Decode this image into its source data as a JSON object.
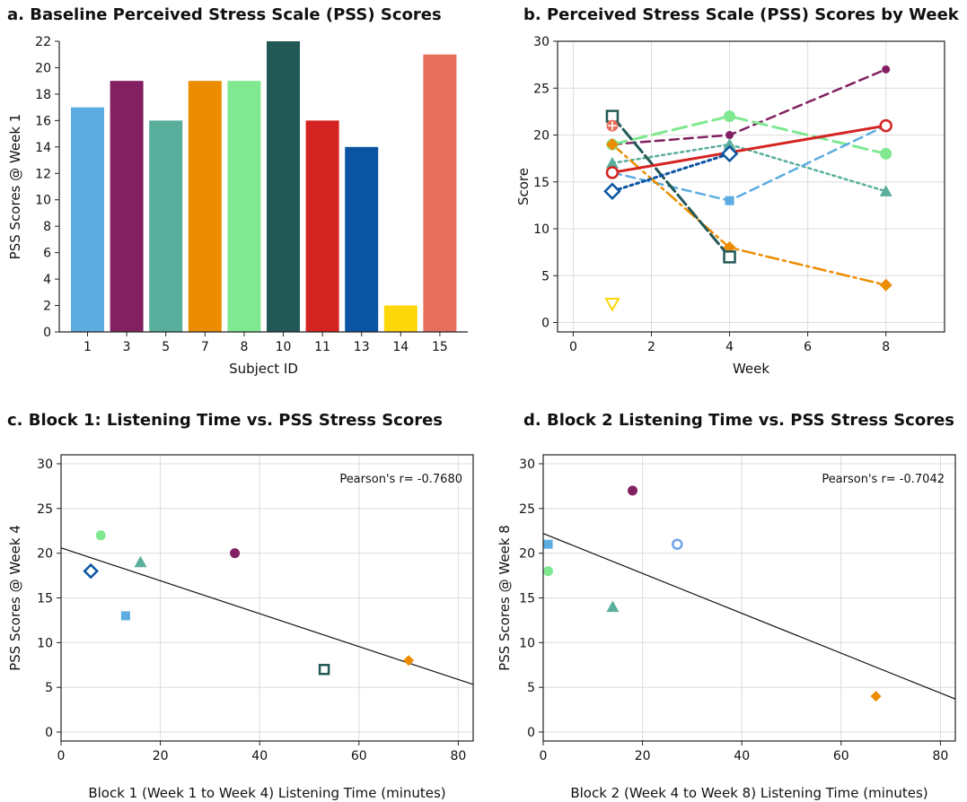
{
  "chart_data": [
    {
      "id": "a",
      "type": "bar",
      "title": "a. Baseline Perceived Stress Scale (PSS) Scores",
      "xlabel": "Subject ID",
      "ylabel": "PSS Scores @ Week 1",
      "ylim": [
        0,
        22
      ],
      "yticks": [
        0,
        2,
        4,
        6,
        8,
        10,
        12,
        14,
        16,
        18,
        20,
        22
      ],
      "grid": false,
      "categories": [
        "1",
        "3",
        "5",
        "7",
        "8",
        "10",
        "11",
        "13",
        "14",
        "15"
      ],
      "values": [
        17,
        19,
        16,
        19,
        19,
        22,
        16,
        14,
        2,
        21
      ],
      "colors": [
        "#5DADE2",
        "#822062",
        "#5AAE9C",
        "#EC8C00",
        "#7FE891",
        "#225956",
        "#D42421",
        "#0A55A3",
        "#FDD70A",
        "#E66F5C"
      ]
    },
    {
      "id": "b",
      "type": "line",
      "title": "b. Perceived Stress Scale (PSS) Scores by Week",
      "xlabel": "Week",
      "ylabel": "Score",
      "xlim": [
        -0.4,
        9.5
      ],
      "ylim": [
        -1,
        30
      ],
      "xticks": [
        0,
        2,
        4,
        6,
        8
      ],
      "yticks": [
        0,
        5,
        10,
        15,
        20,
        25,
        30
      ],
      "grid": true,
      "series": [
        {
          "color": "#822062",
          "dash": "10,6",
          "width": 2.5,
          "marker": "circle",
          "msize": 4,
          "fill": "#822062",
          "points": [
            [
              1,
              19
            ],
            [
              4,
              20
            ],
            [
              8,
              27
            ]
          ]
        },
        {
          "color": "#7FE891",
          "dash": "16,7",
          "width": 3,
          "marker": "circle",
          "msize": 6,
          "fill": "#7FE891",
          "points": [
            [
              1,
              19
            ],
            [
              4,
              22
            ],
            [
              8,
              18
            ]
          ]
        },
        {
          "color": "#5AAE9C",
          "dash": "3,4",
          "width": 2.5,
          "marker": "triangle",
          "msize": 7,
          "fill": "#5AAE9C",
          "points": [
            [
              1,
              17
            ],
            [
              4,
              19
            ],
            [
              8,
              14
            ]
          ]
        },
        {
          "color": "#5DADE2",
          "dash": "10,6",
          "width": 2.5,
          "marker": "square",
          "msize": 5,
          "fill": "#5DADE2",
          "points": [
            [
              1,
              16
            ],
            [
              4,
              13
            ],
            [
              8,
              21
            ]
          ]
        },
        {
          "color": "#EC8C00",
          "dash": "14,5,3,5",
          "width": 2.5,
          "marker": "diamond",
          "msize": 7,
          "fill": "#EC8C00",
          "points": [
            [
              1,
              19
            ],
            [
              4,
              8
            ],
            [
              8,
              4
            ]
          ]
        },
        {
          "color": "#225956",
          "dash": "14,5",
          "width": 3,
          "marker": "square-open",
          "msize": 6,
          "fill": "#ffffff",
          "points": [
            [
              1,
              22
            ],
            [
              4,
              7
            ]
          ]
        },
        {
          "color": "#0A55A3",
          "dash": "3,4",
          "width": 3,
          "marker": "diamond-open",
          "msize": 8,
          "fill": "#ffffff",
          "points": [
            [
              1,
              14
            ],
            [
              4,
              18
            ]
          ]
        },
        {
          "color": "#D42421",
          "dash": "",
          "width": 3,
          "marker": "circle-open",
          "msize": 6,
          "fill": "#ffffff",
          "points": [
            [
              1,
              16
            ],
            [
              8,
              21
            ]
          ]
        },
        {
          "color": "#E66F5C",
          "dash": "",
          "width": 0,
          "marker": "circle-plus",
          "msize": 6,
          "fill": "#E66F5C",
          "points": [
            [
              1,
              21
            ]
          ]
        },
        {
          "color": "#FDD70A",
          "dash": "",
          "width": 0,
          "marker": "triangle-down-open",
          "msize": 7,
          "fill": "#ffffff",
          "points": [
            [
              1,
              2
            ]
          ]
        }
      ]
    },
    {
      "id": "c",
      "type": "scatter",
      "title": "c. Block 1: Listening Time vs. PSS Stress Scores",
      "xlabel": "Block 1 (Week 1 to Week 4) Listening Time (minutes)",
      "ylabel": "PSS Scores @ Week 4",
      "xlim": [
        0,
        83
      ],
      "ylim": [
        -1,
        31
      ],
      "xticks": [
        0,
        20,
        40,
        60,
        80
      ],
      "yticks": [
        0,
        5,
        10,
        15,
        20,
        25,
        30
      ],
      "grid": true,
      "annotation": "Pearson's r= -0.7680",
      "fit": {
        "intercept": 20.6,
        "slope": -0.184
      },
      "points": [
        {
          "x": 8,
          "y": 22,
          "color": "#7FE891",
          "marker": "circle",
          "msize": 5
        },
        {
          "x": 16,
          "y": 19,
          "color": "#5AAE9C",
          "marker": "triangle",
          "msize": 7
        },
        {
          "x": 6,
          "y": 18,
          "color": "#0A55A3",
          "marker": "diamond-open",
          "msize": 7
        },
        {
          "x": 13,
          "y": 13,
          "color": "#5DADE2",
          "marker": "square",
          "msize": 5
        },
        {
          "x": 35,
          "y": 20,
          "color": "#822062",
          "marker": "circle",
          "msize": 5
        },
        {
          "x": 53,
          "y": 7,
          "color": "#225956",
          "marker": "square-open",
          "msize": 5
        },
        {
          "x": 70,
          "y": 8,
          "color": "#EC8C00",
          "marker": "diamond",
          "msize": 6
        }
      ]
    },
    {
      "id": "d",
      "type": "scatter",
      "title": "d. Block 2 Listening Time vs. PSS Stress Scores",
      "xlabel": "Block 2 (Week 4 to Week 8) Listening Time (minutes)",
      "ylabel": "PSS Scores @ Week 8",
      "xlim": [
        0,
        83
      ],
      "ylim": [
        -1,
        31
      ],
      "xticks": [
        0,
        20,
        40,
        60,
        80
      ],
      "yticks": [
        0,
        5,
        10,
        15,
        20,
        25,
        30
      ],
      "grid": true,
      "annotation": "Pearson's r= -0.7042",
      "fit": {
        "intercept": 22.2,
        "slope": -0.223
      },
      "points": [
        {
          "x": 18,
          "y": 27,
          "color": "#822062",
          "marker": "circle",
          "msize": 5
        },
        {
          "x": 1,
          "y": 21,
          "color": "#5DADE2",
          "marker": "square",
          "msize": 5
        },
        {
          "x": 27,
          "y": 21,
          "color": "#6FA3E8",
          "marker": "circle-open",
          "msize": 5
        },
        {
          "x": 1,
          "y": 18,
          "color": "#7FE891",
          "marker": "circle",
          "msize": 5
        },
        {
          "x": 14,
          "y": 14,
          "color": "#5AAE9C",
          "marker": "triangle",
          "msize": 7
        },
        {
          "x": 67,
          "y": 4,
          "color": "#EC8C00",
          "marker": "diamond",
          "msize": 6
        }
      ]
    }
  ]
}
